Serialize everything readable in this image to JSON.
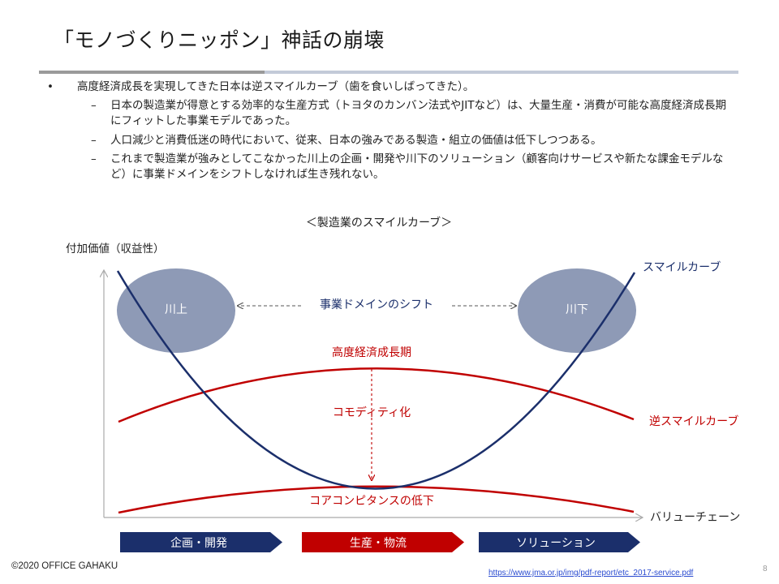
{
  "slide": {
    "title": "「モノづくりニッポン」神話の崩壊",
    "bullets": [
      {
        "marker": "•",
        "text": "高度経済成長を実現してきた日本は逆スマイルカーブ（歯を食いしばってきた）。",
        "subs": [
          {
            "marker": "–",
            "text": "日本の製造業が得意とする効率的な生産方式（トヨタのカンバン法式やJITなど）は、大量生産・消費が可能な高度経済成長期にフィットした事業モデルであった。"
          },
          {
            "marker": "–",
            "text": "人口減少と消費低迷の時代において、従来、日本の強みである製造・組立の価値は低下しつつある。"
          },
          {
            "marker": "–",
            "text": "これまで製造業が強みとしてこなかった川上の企画・開発や川下のソリューション（顧客向けサービスや新たな課金モデルなど）に事業ドメインをシフトしなければ生き残れない。"
          }
        ]
      }
    ]
  },
  "diagram": {
    "title": "＜製造業のスマイルカーブ＞",
    "y_axis_label": "付加価値（収益性）",
    "x_axis_label": "バリューチェーン",
    "upstream_label": "川上",
    "downstream_label": "川下",
    "shift_label": "事業ドメインのシフト",
    "smile_curve_label": "スマイルカーブ",
    "reverse_smile_label": "逆スマイルカーブ",
    "growth_era_label": "高度経済成長期",
    "commoditization_label": "コモディティ化",
    "core_competence_label": "コアコンピタンスの低下",
    "stages": [
      {
        "label": "企画・開発",
        "color": "#1b2f6b"
      },
      {
        "label": "生産・物流",
        "color": "#c00000"
      },
      {
        "label": "ソリューション",
        "color": "#1b2f6b"
      }
    ],
    "colors": {
      "smile_curve": "#1b2f6b",
      "reverse_curve": "#c00000",
      "ellipse_fill": "#8e9ab6",
      "ellipse_text": "#ffffff",
      "axis": "#aaaaaa"
    }
  },
  "footer": {
    "copyright": "©2020 OFFICE GAHAKU",
    "source_url": "https://www.jma.or.jp/img/pdf-report/etc_2017-service.pdf",
    "page_number": "8"
  }
}
